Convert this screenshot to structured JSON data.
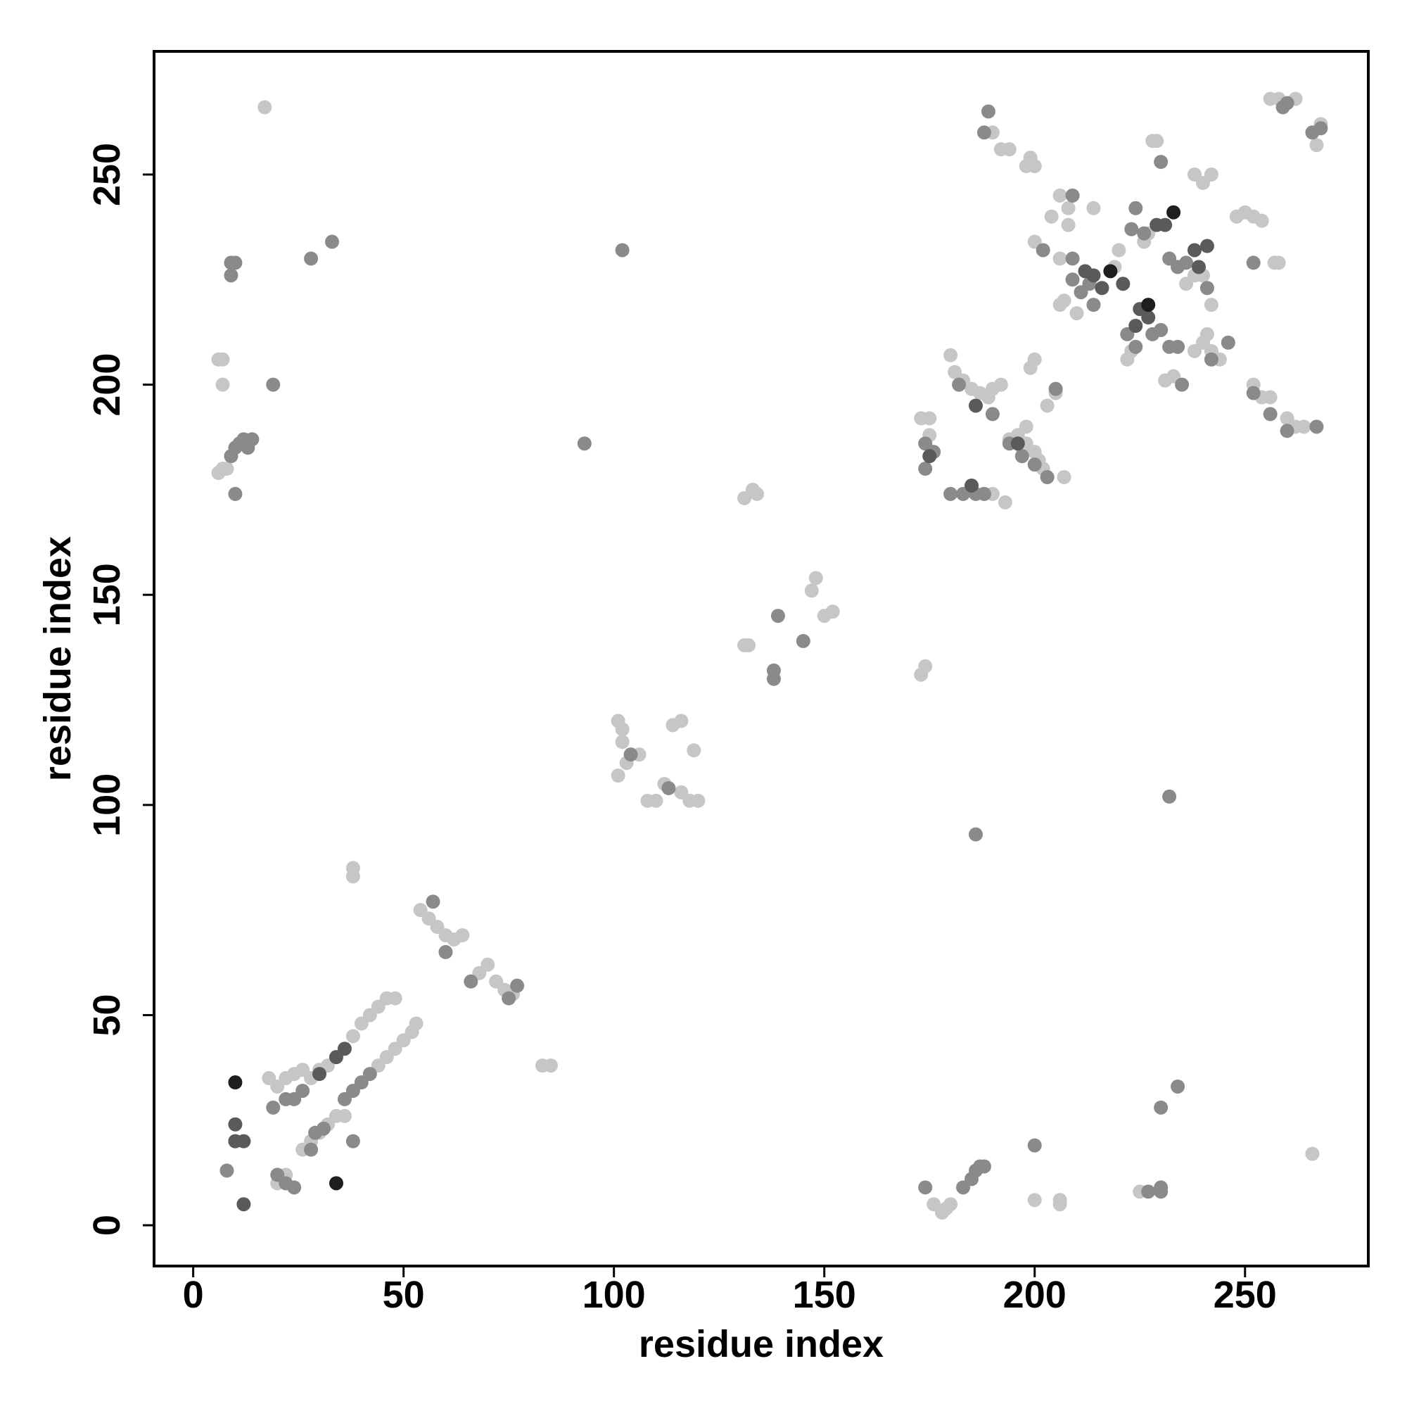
{
  "chart_data": {
    "type": "scatter",
    "x_label": "residue index",
    "y_label": "residue index",
    "xlim": [
      -9.3,
      279.3
    ],
    "ylim": [
      -9.7,
      279.3
    ],
    "xticks": [
      0,
      50,
      100,
      150,
      200,
      250
    ],
    "yticks": [
      0,
      50,
      100,
      150,
      200,
      250
    ],
    "series": [
      {
        "color": "#c6c6c6",
        "x": [
          18,
          20,
          22,
          24,
          26,
          28,
          30,
          32,
          38,
          40,
          42,
          44,
          46,
          48,
          20,
          22,
          26,
          28,
          30,
          32,
          34,
          36,
          44,
          46,
          48,
          50,
          52,
          53,
          54,
          56,
          58,
          60,
          62,
          64,
          68,
          70,
          72,
          74,
          76,
          38,
          38,
          83,
          85,
          101,
          102,
          103,
          101,
          106,
          108,
          110,
          112,
          116,
          118,
          120,
          119,
          114,
          116,
          102,
          131,
          132,
          147,
          148,
          150,
          152,
          131,
          133,
          134,
          173,
          174,
          7,
          8,
          6,
          6,
          7,
          7,
          17,
          176,
          178,
          179,
          180,
          200,
          206,
          206,
          225,
          266,
          173,
          175,
          175,
          180,
          181,
          183,
          185,
          187,
          189,
          190,
          192,
          194,
          196,
          198,
          200,
          201,
          202,
          199,
          200,
          203,
          205,
          207,
          193,
          190,
          198,
          197,
          206,
          208,
          208,
          206,
          207,
          210,
          206,
          204,
          214,
          220,
          219,
          226,
          227,
          228,
          229,
          222,
          223,
          231,
          233,
          238,
          240,
          242,
          241,
          242,
          238,
          236,
          240,
          238,
          240,
          242,
          248,
          250,
          252,
          254,
          252,
          254,
          256,
          262,
          264,
          260,
          258,
          257,
          244,
          190,
          192,
          194,
          198,
          199,
          200,
          200,
          256,
          258,
          262,
          268,
          267
        ],
        "y": [
          35,
          33,
          35,
          36,
          37,
          35,
          37,
          38,
          45,
          48,
          50,
          52,
          54,
          54,
          10,
          12,
          18,
          20,
          22,
          24,
          26,
          26,
          38,
          40,
          42,
          44,
          46,
          48,
          75,
          73,
          71,
          69,
          68,
          69,
          60,
          62,
          58,
          56,
          55,
          85,
          83,
          38,
          38,
          120,
          118,
          110,
          107,
          112,
          101,
          101,
          105,
          103,
          101,
          101,
          113,
          119,
          120,
          115,
          138,
          138,
          151,
          154,
          145,
          146,
          173,
          175,
          174,
          131,
          133,
          180,
          180,
          179,
          206,
          206,
          200,
          266,
          5,
          3,
          4,
          5,
          6,
          5,
          6,
          8,
          17,
          192,
          192,
          188,
          207,
          203,
          201,
          199,
          198,
          197,
          199,
          200,
          187,
          188,
          186,
          184,
          182,
          180,
          204,
          206,
          195,
          198,
          178,
          172,
          174,
          190,
          185,
          245,
          242,
          238,
          219,
          220,
          217,
          230,
          240,
          242,
          232,
          228,
          234,
          236,
          258,
          258,
          206,
          208,
          201,
          202,
          208,
          210,
          208,
          212,
          219,
          226,
          224,
          226,
          250,
          248,
          250,
          240,
          241,
          240,
          239,
          200,
          197,
          197,
          190,
          190,
          192,
          229,
          229,
          206,
          260,
          256,
          256,
          252,
          254,
          252,
          234,
          268,
          268,
          268,
          262,
          257
        ]
      },
      {
        "color": "#8a8a8a",
        "x": [
          19,
          22,
          24,
          36,
          38,
          40,
          42,
          10,
          8,
          20,
          22,
          24,
          29,
          28,
          31,
          38,
          26,
          57,
          60,
          66,
          77,
          75,
          104,
          113,
          138,
          138,
          139,
          145,
          93,
          186,
          102,
          232,
          9,
          10,
          11,
          12,
          14,
          13,
          10,
          19,
          9,
          10,
          9,
          28,
          33,
          174,
          183,
          185,
          186,
          187,
          188,
          200,
          227,
          230,
          230,
          230,
          234,
          174,
          174,
          176,
          183,
          186,
          188,
          182,
          190,
          194,
          197,
          200,
          203,
          205,
          180,
          209,
          211,
          209,
          209,
          213,
          214,
          223,
          226,
          230,
          232,
          234,
          241,
          242,
          246,
          252,
          252,
          256,
          260,
          267,
          224,
          222,
          224,
          228,
          232,
          234,
          236,
          230,
          235,
          188,
          189,
          202,
          259,
          260,
          266,
          268
        ],
        "y": [
          28,
          30,
          30,
          30,
          32,
          34,
          36,
          20,
          13,
          12,
          10,
          9,
          22,
          18,
          23,
          20,
          32,
          77,
          65,
          58,
          57,
          54,
          112,
          104,
          132,
          130,
          145,
          139,
          186,
          93,
          232,
          102,
          183,
          185,
          186,
          187,
          187,
          185,
          174,
          200,
          229,
          229,
          226,
          230,
          234,
          9,
          9,
          11,
          13,
          14,
          14,
          19,
          8,
          9,
          8,
          28,
          33,
          186,
          180,
          184,
          174,
          174,
          174,
          200,
          193,
          186,
          183,
          181,
          178,
          199,
          174,
          245,
          222,
          230,
          225,
          224,
          219,
          237,
          236,
          253,
          209,
          209,
          223,
          206,
          210,
          229,
          198,
          193,
          189,
          190,
          242,
          212,
          209,
          212,
          230,
          228,
          229,
          213,
          200,
          260,
          265,
          232,
          266,
          267,
          260,
          261
        ]
      },
      {
        "color": "#5a5a5a",
        "x": [
          34,
          36,
          30,
          10,
          12,
          12,
          10,
          186,
          196,
          175,
          185,
          212,
          214,
          225,
          224,
          227,
          231,
          241,
          238,
          239,
          229,
          216,
          221
        ],
        "y": [
          40,
          42,
          36,
          24,
          20,
          5,
          20,
          195,
          186,
          183,
          176,
          227,
          226,
          218,
          214,
          216,
          238,
          233,
          232,
          228,
          238,
          223,
          224
        ]
      },
      {
        "color": "#1e1e1e",
        "x": [
          10,
          34,
          218,
          227,
          233
        ],
        "y": [
          34,
          10,
          227,
          219,
          241
        ]
      }
    ]
  }
}
